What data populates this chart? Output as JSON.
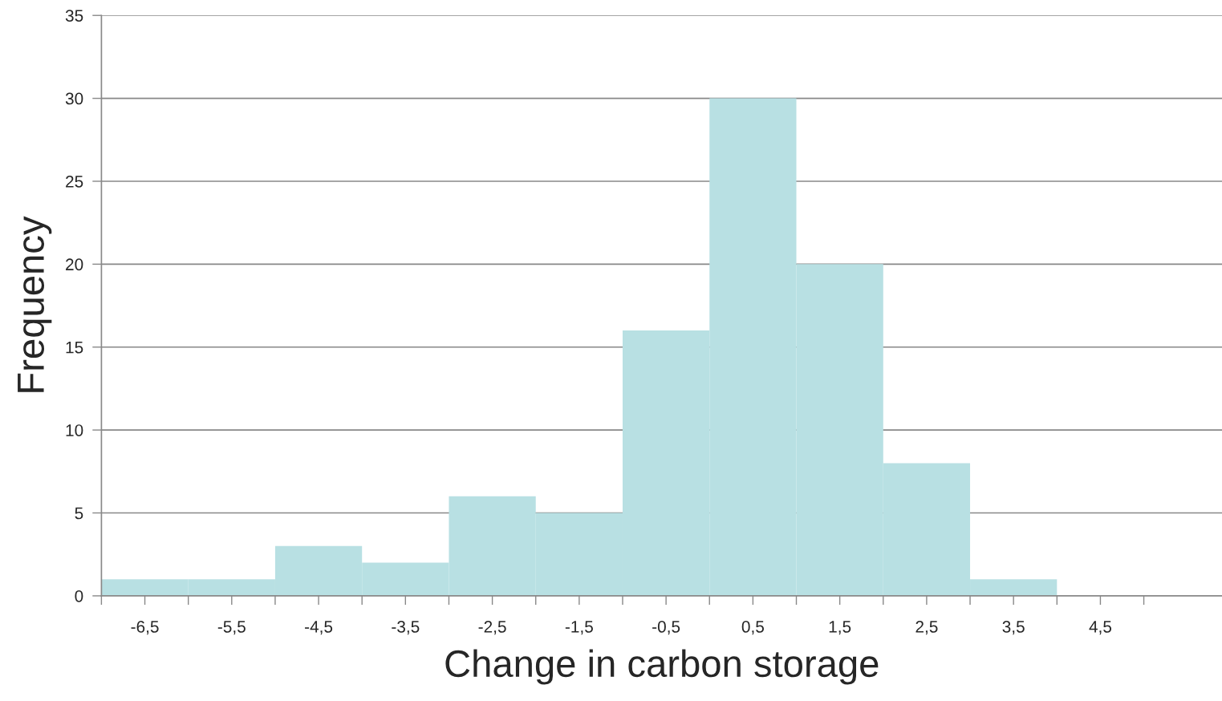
{
  "chart_data": {
    "type": "histogram",
    "xlabel": "Change in carbon storage",
    "ylabel": "Frequency",
    "bins": [
      -7,
      -6,
      -5,
      -4,
      -3,
      -2,
      -1,
      0,
      1,
      2,
      3,
      4,
      5
    ],
    "values": [
      1,
      1,
      3,
      2,
      6,
      5,
      16,
      30,
      20,
      8,
      1,
      0
    ],
    "color": "#b8e0e3",
    "xlim": [
      -7,
      5.9
    ],
    "xticks": [
      {
        "value": -7,
        "label": null
      },
      {
        "value": -6.5,
        "label": "-6,5"
      },
      {
        "value": -6,
        "label": null
      },
      {
        "value": -5.5,
        "label": "-5,5"
      },
      {
        "value": -5,
        "label": null
      },
      {
        "value": -4.5,
        "label": "-4,5"
      },
      {
        "value": -4,
        "label": null
      },
      {
        "value": -3.5,
        "label": "-3,5"
      },
      {
        "value": -3,
        "label": null
      },
      {
        "value": -2.5,
        "label": "-2,5"
      },
      {
        "value": -2,
        "label": null
      },
      {
        "value": -1.5,
        "label": "-1,5"
      },
      {
        "value": -1,
        "label": null
      },
      {
        "value": -0.5,
        "label": "-0,5"
      },
      {
        "value": 0,
        "label": null
      },
      {
        "value": 0.5,
        "label": "0,5"
      },
      {
        "value": 1,
        "label": null
      },
      {
        "value": 1.5,
        "label": "1,5"
      },
      {
        "value": 2,
        "label": null
      },
      {
        "value": 2.5,
        "label": "2,5"
      },
      {
        "value": 3,
        "label": null
      },
      {
        "value": 3.5,
        "label": "3,5"
      },
      {
        "value": 4,
        "label": null
      },
      {
        "value": 4.5,
        "label": "4,5"
      },
      {
        "value": 5,
        "label": null
      }
    ],
    "ylim": [
      0,
      35
    ],
    "yticks": [
      0,
      5,
      10,
      15,
      20,
      25,
      30,
      35
    ],
    "grid": "y"
  }
}
